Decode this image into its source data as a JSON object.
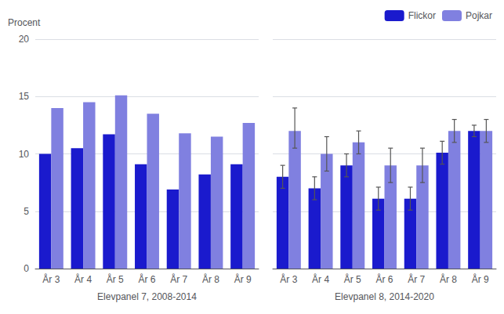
{
  "chart_data": [
    {
      "type": "bar",
      "xlabel": "Elevpanel 7, 2008-2014",
      "ylabel": "Procent",
      "categories": [
        "År 3",
        "År 4",
        "År 5",
        "År 6",
        "År 7",
        "År 8",
        "År 9"
      ],
      "series": [
        {
          "name": "Flickor",
          "color": "#1a1acd",
          "values": [
            10.0,
            10.5,
            11.7,
            9.1,
            6.9,
            8.2,
            9.1
          ]
        },
        {
          "name": "Pojkar",
          "color": "#8080e0",
          "values": [
            14.0,
            14.5,
            15.1,
            13.5,
            11.8,
            11.5,
            12.7
          ]
        }
      ],
      "ylim": [
        0,
        20
      ],
      "yticks": [
        0,
        5,
        10,
        15,
        20
      ],
      "grid": true
    },
    {
      "type": "bar",
      "xlabel": "Elevpanel 8, 2014-2020",
      "categories": [
        "År 3",
        "År 4",
        "År 5",
        "År 6",
        "År 7",
        "År 8",
        "År 9"
      ],
      "series": [
        {
          "name": "Flickor",
          "color": "#1a1acd",
          "values": [
            8.0,
            7.0,
            9.0,
            6.1,
            6.1,
            10.1,
            12.0
          ],
          "error_lo": [
            1.0,
            1.0,
            1.0,
            1.0,
            1.0,
            1.0,
            0.5
          ],
          "error_hi": [
            1.0,
            1.0,
            1.0,
            1.0,
            1.0,
            1.0,
            0.5
          ]
        },
        {
          "name": "Pojkar",
          "color": "#8080e0",
          "values": [
            12.0,
            10.0,
            11.0,
            9.0,
            9.0,
            12.0,
            12.0
          ],
          "error_lo": [
            1.5,
            1.5,
            1.0,
            1.5,
            1.5,
            1.0,
            1.0
          ],
          "error_hi": [
            2.0,
            1.5,
            1.0,
            1.5,
            1.5,
            1.0,
            1.0
          ]
        }
      ],
      "ylim": [
        0,
        20
      ],
      "yticks": [
        0,
        5,
        10,
        15,
        20
      ],
      "grid": true,
      "tick_labels": "x",
      "legend": "upper right"
    }
  ]
}
